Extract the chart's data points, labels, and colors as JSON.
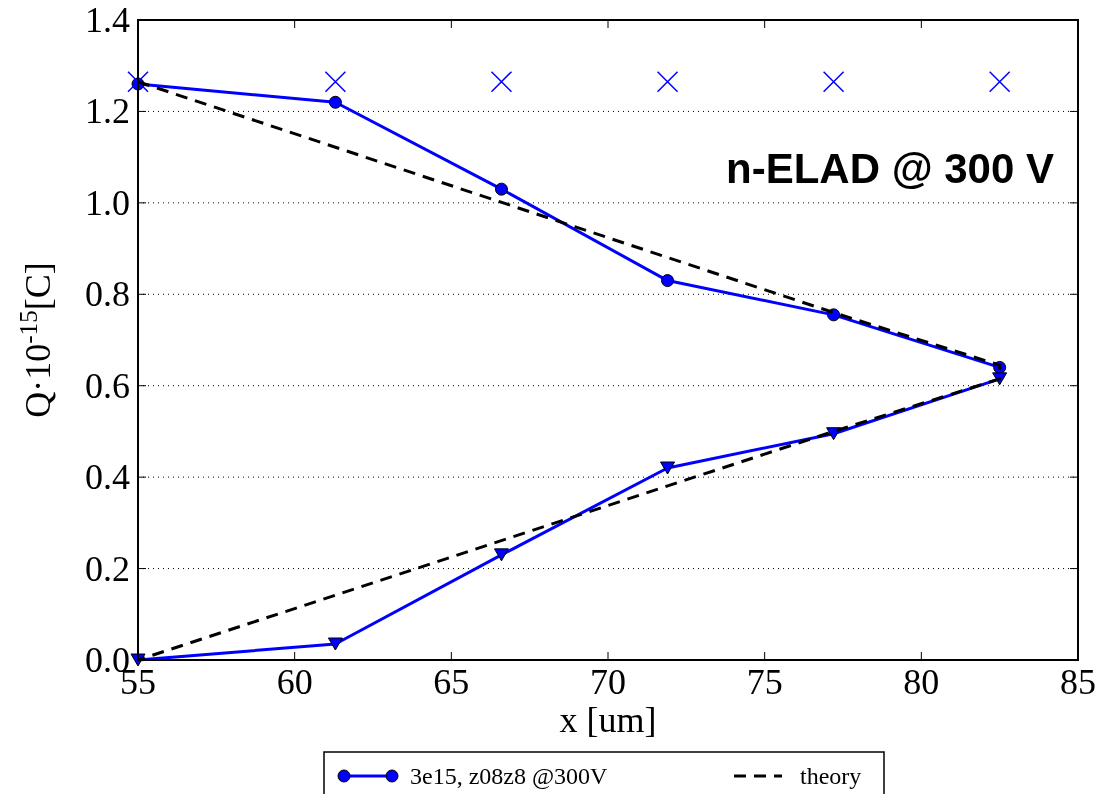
{
  "chart_data": {
    "type": "line",
    "xlabel": "x [um]",
    "ylabel": "Q·10$^{-15}$[C]",
    "xlim": [
      55,
      85
    ],
    "xticks": [
      55,
      60,
      65,
      70,
      75,
      80,
      85
    ],
    "ylim": [
      0,
      1.4
    ],
    "yticks": [
      {
        "value": 0,
        "label": "0.0"
      },
      0.2,
      0.4,
      0.6,
      0.8,
      {
        "value": 1,
        "label": "1.0"
      },
      1.2,
      1.4
    ],
    "grid": "y",
    "legend": "bottom",
    "annotations": [
      "n-ELAD @ 300 V"
    ],
    "series": [
      {
        "name": "3e15, z08z8 @300V",
        "type": "line",
        "color": "#0000ff",
        "marker": "circle",
        "line_style": "solid",
        "x": [
          55,
          61.3,
          66.6,
          71.9,
          77.2,
          82.5
        ],
        "values": [
          1.26,
          1.22,
          1.03,
          0.83,
          0.755,
          0.64
        ]
      },
      {
        "type": "line",
        "color": "#0000ff",
        "marker": "triangle",
        "line_style": "solid",
        "x": [
          82.5,
          77.2,
          71.9,
          66.6,
          61.3,
          55
        ],
        "values": [
          0.615,
          0.495,
          0.42,
          0.23,
          0.035,
          0
        ]
      },
      {
        "type": "scatter",
        "color": "#0000ff",
        "marker": "cross",
        "x": [
          55,
          61.3,
          66.6,
          71.9,
          77.2,
          82.5
        ],
        "values": [
          1.265,
          1.265,
          1.265,
          1.265,
          1.265,
          1.265
        ]
      },
      {
        "name": "theory",
        "type": "line",
        "color": "#000000",
        "marker": "none",
        "line_style": "dashed",
        "x": [
          55,
          77.2,
          82.5,
          82.5,
          77.2,
          55
        ],
        "values": [
          1.265,
          0.76,
          0.645,
          0.615,
          0.5,
          0
        ]
      }
    ]
  }
}
